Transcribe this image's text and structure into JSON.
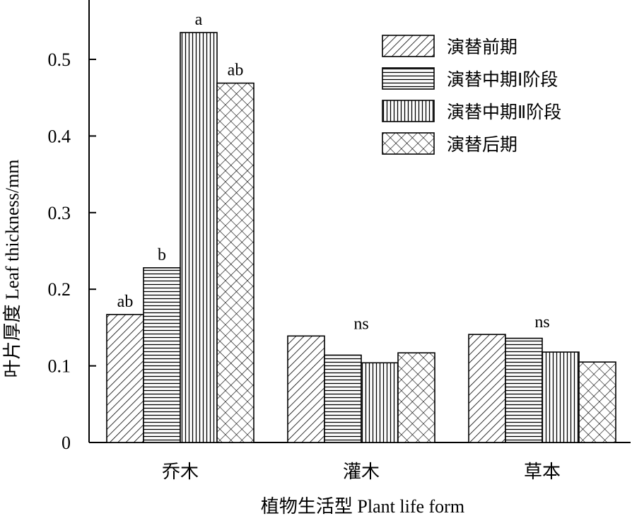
{
  "chart_data": {
    "type": "bar",
    "ylabel": "叶片厚度 Leaf thickness/mm",
    "xlabel": "植物生活型 Plant life form",
    "ylim": [
      0,
      0.58
    ],
    "yticks": [
      0,
      0.1,
      0.2,
      0.3,
      0.4,
      0.5
    ],
    "ytick_labels": [
      "0",
      "0.1",
      "0.2",
      "0.3",
      "0.4",
      "0.5"
    ],
    "categories": [
      "乔木",
      "灌木",
      "草本"
    ],
    "series": [
      {
        "name": "演替前期",
        "pattern": "diagonal-hatch",
        "values": [
          0.167,
          0.139,
          0.141
        ]
      },
      {
        "name": "演替中期Ⅰ阶段",
        "pattern": "horizontal-hatch",
        "values": [
          0.228,
          0.114,
          0.136
        ]
      },
      {
        "name": "演替中期Ⅱ阶段",
        "pattern": "vertical-hatch",
        "values": [
          0.535,
          0.104,
          0.118
        ]
      },
      {
        "name": "演替后期",
        "pattern": "crosshatch",
        "values": [
          0.469,
          0.117,
          0.105
        ]
      }
    ],
    "bar_annotations": [
      [
        "ab",
        "b",
        "a",
        "ab"
      ],
      [
        "",
        "",
        "",
        ""
      ],
      [
        "",
        "",
        "",
        ""
      ]
    ],
    "group_annotations": [
      "",
      "ns",
      "ns"
    ],
    "legend_position": "top-right",
    "grid": false,
    "colors": {
      "stroke": "#000000",
      "background": "#ffffff"
    }
  }
}
